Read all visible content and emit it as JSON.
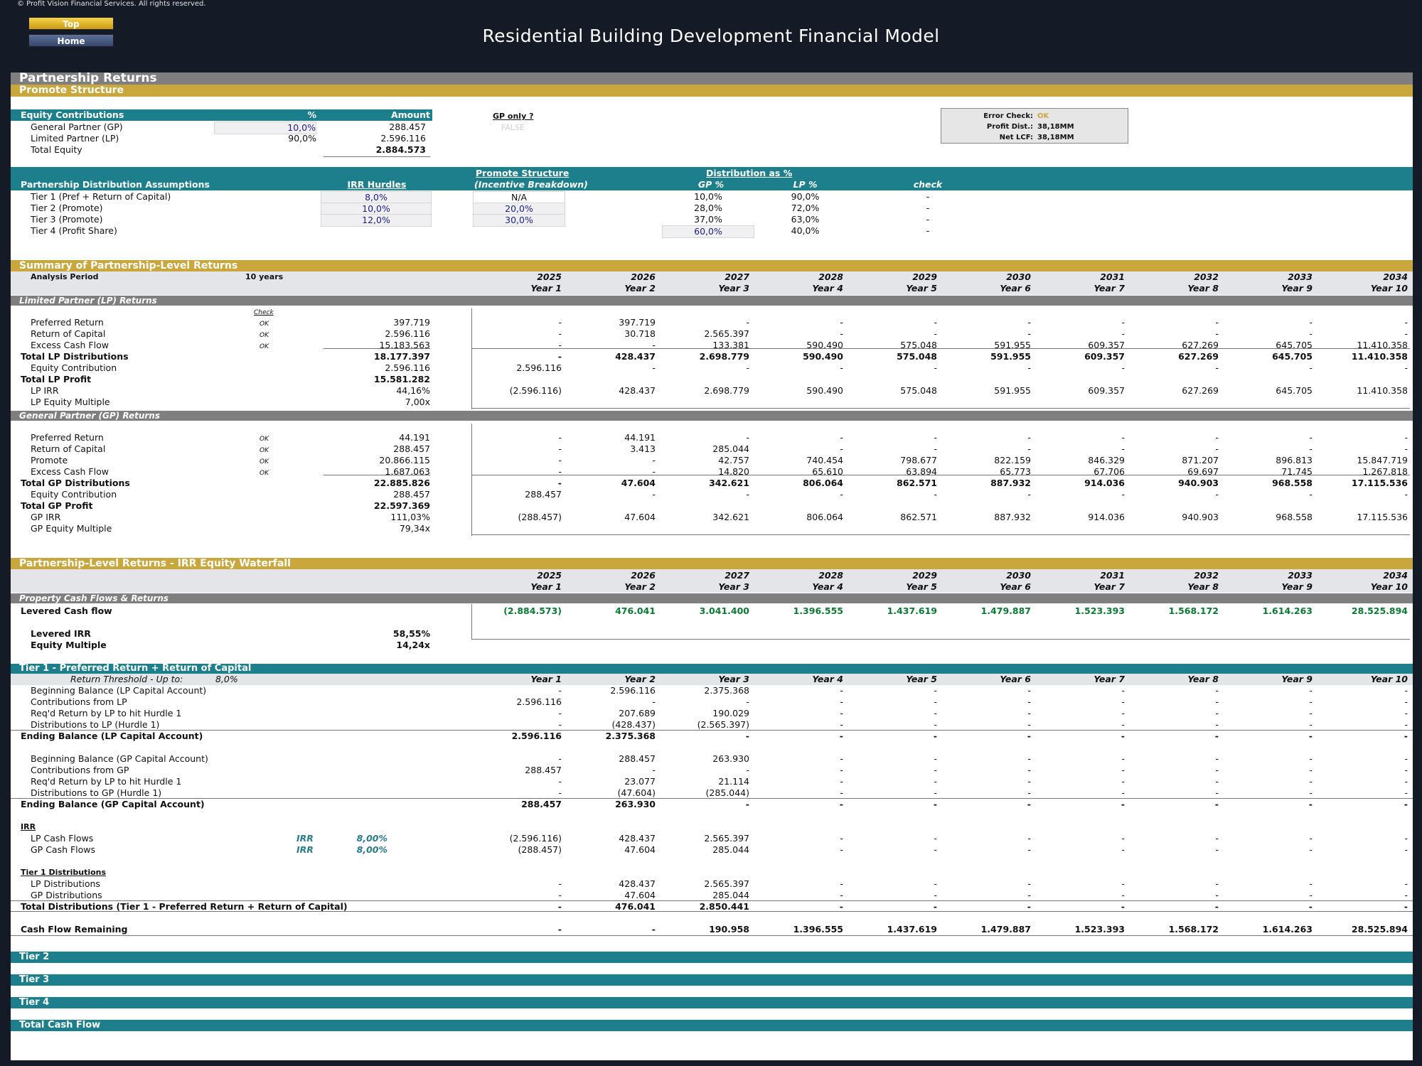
{
  "copyright": "© Profit Vision Financial Services. All rights reserved.",
  "nav": {
    "top_label": "Top",
    "home_label": "Home"
  },
  "title": "Residential Building Development Financial Model",
  "section_title": "Partnership Returns",
  "promote_structure": {
    "band_title": "Promote Structure",
    "equity": {
      "header": "Equity Contributions",
      "pct_header": "%",
      "amount_header": "Amount",
      "rows": [
        {
          "label": "General Partner (GP)",
          "pct": "10,0%",
          "amount": "288.457"
        },
        {
          "label": "Limited Partner (LP)",
          "pct": "90,0%",
          "amount": "2.596.116"
        },
        {
          "label": "Total Equity",
          "pct": "",
          "amount": "2.884.573"
        }
      ]
    },
    "gp_only": {
      "label": "GP only ?",
      "value": "FALSE"
    },
    "checks": [
      {
        "label": "Error Check:",
        "value": "OK"
      },
      {
        "label": "Profit Dist.:",
        "value": "38,18MM"
      },
      {
        "label": "Net LCF:",
        "value": "38,18MM"
      }
    ],
    "distribution": {
      "header": "Partnership Distribution Assumptions",
      "irr_header": "IRR Hurdles",
      "promote_header": "Promote Structure",
      "promote_sub": "(Incentive Breakdown)",
      "dist_header": "Distribution as %",
      "gp_header": "GP %",
      "lp_header": "LP %",
      "check_header": "check",
      "rows": [
        {
          "label": "Tier 1 (Pref + Return of Capital)",
          "irr": "8,0%",
          "promote": "N/A",
          "gp": "10,0%",
          "lp": "90,0%",
          "check": "-"
        },
        {
          "label": "Tier 2 (Promote)",
          "irr": "10,0%",
          "promote": "20,0%",
          "gp": "28,0%",
          "lp": "72,0%",
          "check": "-"
        },
        {
          "label": "Tier 3 (Promote)",
          "irr": "12,0%",
          "promote": "30,0%",
          "gp": "37,0%",
          "lp": "63,0%",
          "check": "-"
        },
        {
          "label": "Tier 4 (Profit Share)",
          "irr": "",
          "promote": "",
          "gp": "60,0%",
          "lp": "40,0%",
          "check": "-"
        }
      ]
    }
  },
  "summary": {
    "band_title": "Summary of Partnership-Level Returns",
    "analysis_label": "Analysis Period",
    "analysis_value": "10 years",
    "years": [
      "2025",
      "2026",
      "2027",
      "2028",
      "2029",
      "2030",
      "2031",
      "2032",
      "2033",
      "2034"
    ],
    "periods": [
      "Year 1",
      "Year 2",
      "Year 3",
      "Year 4",
      "Year 5",
      "Year 6",
      "Year 7",
      "Year 8",
      "Year 9",
      "Year 10"
    ],
    "check_label": "Check",
    "lp": {
      "title": "Limited Partner (LP) Returns",
      "rows": [
        {
          "label": "Preferred Return",
          "check": "OK",
          "total": "397.719",
          "vals": [
            "-",
            "397.719",
            "-",
            "-",
            "-",
            "-",
            "-",
            "-",
            "-",
            "-"
          ]
        },
        {
          "label": "Return of Capital",
          "check": "OK",
          "total": "2.596.116",
          "vals": [
            "-",
            "30.718",
            "2.565.397",
            "-",
            "-",
            "-",
            "-",
            "-",
            "-",
            "-"
          ]
        },
        {
          "label": "Excess Cash Flow",
          "check": "OK",
          "total": "15.183.563",
          "vals": [
            "-",
            "-",
            "133.381",
            "590.490",
            "575.048",
            "591.955",
            "609.357",
            "627.269",
            "645.705",
            "11.410.358"
          ]
        },
        {
          "label": "Total LP Distributions",
          "bold": true,
          "check": "",
          "total": "18.177.397",
          "vals": [
            "-",
            "428.437",
            "2.698.779",
            "590.490",
            "575.048",
            "591.955",
            "609.357",
            "627.269",
            "645.705",
            "11.410.358"
          ]
        },
        {
          "label": "Equity Contribution",
          "check": "",
          "total": "2.596.116",
          "vals": [
            "2.596.116",
            "-",
            "-",
            "-",
            "-",
            "-",
            "-",
            "-",
            "-",
            "-"
          ]
        },
        {
          "label": "Total LP Profit",
          "bold": true,
          "check": "",
          "total": "15.581.282",
          "vals": [
            "",
            "",
            "",
            "",
            "",
            "",
            "",
            "",
            "",
            ""
          ]
        },
        {
          "label": "LP IRR",
          "check": "",
          "total": "44,16%",
          "vals": [
            "(2.596.116)",
            "428.437",
            "2.698.779",
            "590.490",
            "575.048",
            "591.955",
            "609.357",
            "627.269",
            "645.705",
            "11.410.358"
          ]
        },
        {
          "label": "LP Equity Multiple",
          "check": "",
          "total": "7,00x",
          "vals": [
            "",
            "",
            "",
            "",
            "",
            "",
            "",
            "",
            "",
            ""
          ]
        }
      ]
    },
    "gp": {
      "title": "General Partner (GP) Returns",
      "rows": [
        {
          "label": "Preferred Return",
          "check": "OK",
          "total": "44.191",
          "vals": [
            "-",
            "44.191",
            "-",
            "-",
            "-",
            "-",
            "-",
            "-",
            "-",
            "-"
          ]
        },
        {
          "label": "Return of Capital",
          "check": "OK",
          "total": "288.457",
          "vals": [
            "-",
            "3.413",
            "285.044",
            "-",
            "-",
            "-",
            "-",
            "-",
            "-",
            "-"
          ]
        },
        {
          "label": "Promote",
          "check": "OK",
          "total": "20.866.115",
          "vals": [
            "-",
            "-",
            "42.757",
            "740.454",
            "798.677",
            "822.159",
            "846.329",
            "871.207",
            "896.813",
            "15.847.719"
          ]
        },
        {
          "label": "Excess Cash Flow",
          "check": "OK",
          "total": "1.687.063",
          "vals": [
            "-",
            "-",
            "14.820",
            "65.610",
            "63.894",
            "65.773",
            "67.706",
            "69.697",
            "71.745",
            "1.267.818"
          ]
        },
        {
          "label": "Total GP Distributions",
          "bold": true,
          "check": "",
          "total": "22.885.826",
          "vals": [
            "-",
            "47.604",
            "342.621",
            "806.064",
            "862.571",
            "887.932",
            "914.036",
            "940.903",
            "968.558",
            "17.115.536"
          ]
        },
        {
          "label": "Equity Contribution",
          "check": "",
          "total": "288.457",
          "vals": [
            "288.457",
            "-",
            "-",
            "-",
            "-",
            "-",
            "-",
            "-",
            "-",
            "-"
          ]
        },
        {
          "label": "Total GP Profit",
          "bold": true,
          "check": "",
          "total": "22.597.369",
          "vals": [
            "",
            "",
            "",
            "",
            "",
            "",
            "",
            "",
            "",
            ""
          ]
        },
        {
          "label": "GP IRR",
          "check": "",
          "total": "111,03%",
          "vals": [
            "(288.457)",
            "47.604",
            "342.621",
            "806.064",
            "862.571",
            "887.932",
            "914.036",
            "940.903",
            "968.558",
            "17.115.536"
          ]
        },
        {
          "label": "GP Equity Multiple",
          "check": "",
          "total": "79,34x",
          "vals": [
            "",
            "",
            "",
            "",
            "",
            "",
            "",
            "",
            "",
            ""
          ]
        }
      ]
    }
  },
  "waterfall": {
    "band_title": "Partnership-Level Returns - IRR Equity Waterfall",
    "property_title": "Property Cash Flows & Returns",
    "levered_label": "Levered Cash flow",
    "levered_vals": [
      "(2.884.573)",
      "476.041",
      "3.041.400",
      "1.396.555",
      "1.437.619",
      "1.479.887",
      "1.523.393",
      "1.568.172",
      "1.614.263",
      "28.525.894"
    ],
    "levered_irr_label": "Levered IRR",
    "levered_irr": "58,55%",
    "equity_multiple_label": "Equity Multiple",
    "equity_multiple": "14,24x",
    "tier1": {
      "band_title": "Tier 1 - Preferred Return + Return of Capital",
      "threshold_label": "Return Threshold - Up to:",
      "threshold_value": "8,0%",
      "rows": [
        {
          "label": "Beginning Balance (LP Capital Account)",
          "vals": [
            "-",
            "2.596.116",
            "2.375.368",
            "-",
            "-",
            "-",
            "-",
            "-",
            "-",
            "-"
          ]
        },
        {
          "label": "Contributions from LP",
          "vals": [
            "2.596.116",
            "-",
            "-",
            "-",
            "-",
            "-",
            "-",
            "-",
            "-",
            "-"
          ]
        },
        {
          "label": "Req'd Return by LP to hit Hurdle 1",
          "vals": [
            "-",
            "207.689",
            "190.029",
            "-",
            "-",
            "-",
            "-",
            "-",
            "-",
            "-"
          ]
        },
        {
          "label": "Distributions to LP (Hurdle 1)",
          "vals": [
            "-",
            "(428.437)",
            "(2.565.397)",
            "-",
            "-",
            "-",
            "-",
            "-",
            "-",
            "-"
          ]
        },
        {
          "label": "Ending Balance (LP Capital Account)",
          "bold": true,
          "vals": [
            "2.596.116",
            "2.375.368",
            "-",
            "-",
            "-",
            "-",
            "-",
            "-",
            "-",
            "-"
          ]
        },
        {
          "label": "Beginning Balance (GP Capital Account)",
          "vals": [
            "-",
            "288.457",
            "263.930",
            "-",
            "-",
            "-",
            "-",
            "-",
            "-",
            "-"
          ]
        },
        {
          "label": "Contributions from GP",
          "vals": [
            "288.457",
            "-",
            "-",
            "-",
            "-",
            "-",
            "-",
            "-",
            "-",
            "-"
          ]
        },
        {
          "label": "Req'd Return by LP to hit Hurdle 1",
          "vals": [
            "-",
            "23.077",
            "21.114",
            "-",
            "-",
            "-",
            "-",
            "-",
            "-",
            "-"
          ]
        },
        {
          "label": "Distributions to GP (Hurdle 1)",
          "vals": [
            "-",
            "(47.604)",
            "(285.044)",
            "-",
            "-",
            "-",
            "-",
            "-",
            "-",
            "-"
          ]
        },
        {
          "label": "Ending Balance (GP Capital Account)",
          "bold": true,
          "vals": [
            "288.457",
            "263.930",
            "-",
            "-",
            "-",
            "-",
            "-",
            "-",
            "-",
            "-"
          ]
        }
      ],
      "irr_title": "IRR",
      "irr_rows": [
        {
          "label": "LP Cash Flows",
          "tag": "IRR",
          "rate": "8,00%",
          "vals": [
            "(2.596.116)",
            "428.437",
            "2.565.397",
            "-",
            "-",
            "-",
            "-",
            "-",
            "-",
            "-"
          ]
        },
        {
          "label": "GP Cash Flows",
          "tag": "IRR",
          "rate": "8,00%",
          "vals": [
            "(288.457)",
            "47.604",
            "285.044",
            "-",
            "-",
            "-",
            "-",
            "-",
            "-",
            "-"
          ]
        }
      ],
      "dist_title": "Tier 1 Distributions",
      "dist_rows": [
        {
          "label": "LP Distributions",
          "vals": [
            "-",
            "428.437",
            "2.565.397",
            "-",
            "-",
            "-",
            "-",
            "-",
            "-",
            "-"
          ]
        },
        {
          "label": "GP Distributions",
          "vals": [
            "-",
            "47.604",
            "285.044",
            "-",
            "-",
            "-",
            "-",
            "-",
            "-",
            "-"
          ]
        },
        {
          "label": "Total Distributions (Tier 1 - Preferred Return + Return of Capital)",
          "bold": true,
          "vals": [
            "-",
            "476.041",
            "2.850.441",
            "-",
            "-",
            "-",
            "-",
            "-",
            "-",
            "-"
          ]
        }
      ],
      "remaining_label": "Cash Flow Remaining",
      "remaining_vals": [
        "-",
        "-",
        "190.958",
        "1.396.555",
        "1.437.619",
        "1.479.887",
        "1.523.393",
        "1.568.172",
        "1.614.263",
        "28.525.894"
      ]
    },
    "collapsed_bands": [
      "Tier 2",
      "Tier 3",
      "Tier 4",
      "Total Cash Flow"
    ]
  }
}
